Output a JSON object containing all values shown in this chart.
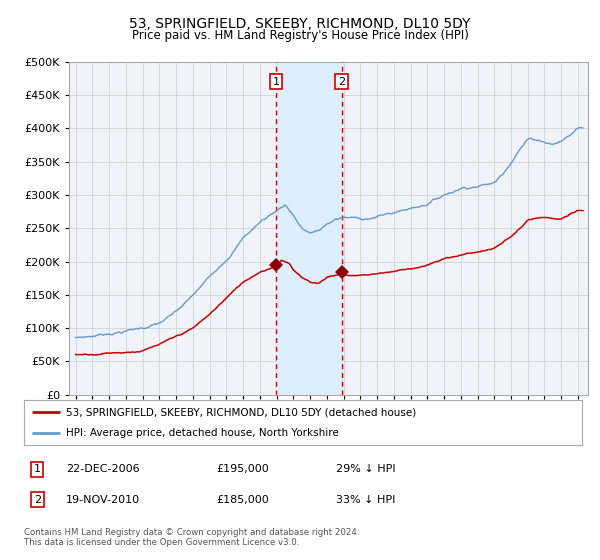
{
  "title": "53, SPRINGFIELD, SKEEBY, RICHMOND, DL10 5DY",
  "subtitle": "Price paid vs. HM Land Registry's House Price Index (HPI)",
  "legend_line1": "53, SPRINGFIELD, SKEEBY, RICHMOND, DL10 5DY (detached house)",
  "legend_line2": "HPI: Average price, detached house, North Yorkshire",
  "annotation1_label": "1",
  "annotation1_date": "22-DEC-2006",
  "annotation1_price": "£195,000",
  "annotation1_hpi": "29% ↓ HPI",
  "annotation2_label": "2",
  "annotation2_date": "19-NOV-2010",
  "annotation2_price": "£185,000",
  "annotation2_hpi": "33% ↓ HPI",
  "footer": "Contains HM Land Registry data © Crown copyright and database right 2024.\nThis data is licensed under the Open Government Licence v3.0.",
  "hpi_color": "#6699cc",
  "price_color": "#cc0000",
  "marker_color": "#8b0000",
  "shade_color": "#ddeeff",
  "vline_color": "#cc0000",
  "annotation_box_color": "#cc0000",
  "grid_color": "#cccccc",
  "bg_color": "#ffffff",
  "plot_bg_color": "#f0f4fa",
  "ylim": [
    0,
    500000
  ],
  "year_start": 1995,
  "year_end": 2025,
  "sale1_year": 2006.97,
  "sale1_price": 195000,
  "sale2_year": 2010.88,
  "sale2_price": 185000,
  "hpi_knots_x": [
    1995,
    1996,
    1997,
    1998,
    1999,
    2000,
    2001,
    2002,
    2003,
    2004,
    2005,
    2006,
    2007,
    2007.5,
    2008,
    2008.5,
    2009,
    2009.5,
    2010,
    2010.5,
    2011,
    2012,
    2013,
    2014,
    2015,
    2016,
    2017,
    2018,
    2019,
    2020,
    2020.5,
    2021,
    2021.5,
    2022,
    2022.5,
    2023,
    2023.5,
    2024,
    2024.5,
    2025
  ],
  "hpi_knots_y": [
    85000,
    88000,
    93000,
    98000,
    103000,
    110000,
    125000,
    148000,
    175000,
    205000,
    238000,
    262000,
    280000,
    290000,
    275000,
    255000,
    248000,
    250000,
    260000,
    268000,
    270000,
    268000,
    272000,
    278000,
    285000,
    294000,
    308000,
    320000,
    326000,
    330000,
    345000,
    365000,
    385000,
    400000,
    400000,
    398000,
    395000,
    400000,
    408000,
    420000
  ],
  "price_knots_x": [
    1995,
    1996,
    1997,
    1998,
    1999,
    2000,
    2001,
    2002,
    2003,
    2004,
    2005,
    2006,
    2006.97,
    2007.3,
    2007.8,
    2008,
    2008.5,
    2009,
    2009.5,
    2010,
    2010.88,
    2011,
    2012,
    2013,
    2014,
    2015,
    2016,
    2017,
    2018,
    2019,
    2020,
    2021,
    2022,
    2022.5,
    2023,
    2023.5,
    2024,
    2024.5,
    2025
  ],
  "price_knots_y": [
    60000,
    62000,
    65000,
    67000,
    70000,
    78000,
    88000,
    100000,
    120000,
    145000,
    168000,
    185000,
    195000,
    205000,
    198000,
    188000,
    178000,
    172000,
    170000,
    180000,
    185000,
    182000,
    183000,
    186000,
    190000,
    195000,
    200000,
    208000,
    215000,
    220000,
    225000,
    242000,
    265000,
    268000,
    268000,
    265000,
    265000,
    270000,
    275000
  ]
}
